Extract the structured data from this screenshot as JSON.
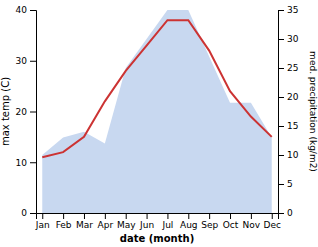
{
  "chart_data": {
    "type": "line",
    "xlabel": "date (month)",
    "ylabel": "max temp (C)",
    "y2label": "med. precipitation (kg/m2)",
    "categories": [
      "Jan",
      "Feb",
      "Mar",
      "Apr",
      "May",
      "Jun",
      "Jul",
      "Aug",
      "Sep",
      "Oct",
      "Nov",
      "Dec"
    ],
    "series": [
      {
        "type": "area",
        "axis": "y2",
        "color": "#c8d8f0",
        "values": [
          10,
          13,
          14,
          12,
          25,
          30,
          35,
          35,
          27,
          19,
          19,
          13
        ]
      },
      {
        "type": "line",
        "color": "#cc3333",
        "values": [
          11,
          12,
          15,
          22,
          28,
          33,
          38,
          38,
          32,
          24,
          19,
          15
        ]
      }
    ],
    "ylim": [
      0,
      40
    ],
    "yticks": [
      0,
      10,
      20,
      30,
      40
    ],
    "y2lim": [
      0,
      35
    ],
    "y2ticks": [
      0,
      5,
      10,
      15,
      20,
      25,
      30,
      35
    ],
    "grid": false
  }
}
